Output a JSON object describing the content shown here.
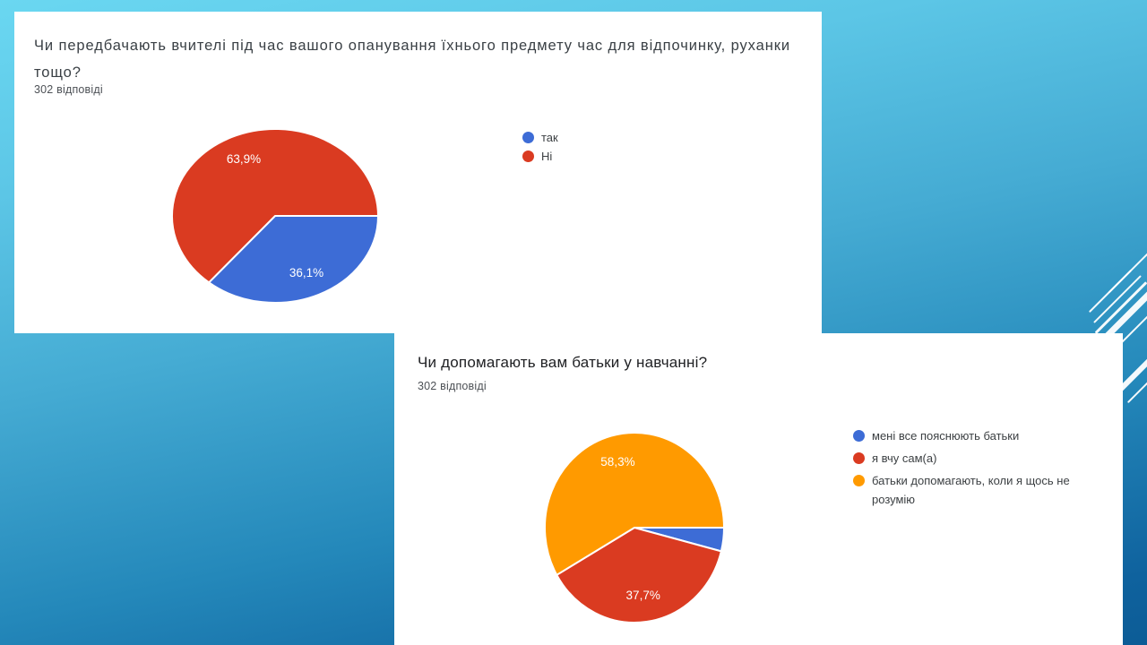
{
  "slide_background": {
    "top_color": "#6ad7f1",
    "bottom_color": "#0c5c96",
    "accent_lines_color": "#ffffff",
    "card_color": "#ffffff"
  },
  "chart_data": [
    {
      "type": "pie",
      "title": "Чи передбачають вчителі під час вашого опанування їхнього предмету час для відпочинку, руханки тощо?",
      "subtitle": "302 відповіді",
      "categories": [
        "так",
        "Ні"
      ],
      "values": [
        36.1,
        63.9
      ],
      "data_labels": [
        "36,1%",
        "63,9%"
      ],
      "colors": [
        "#3d6cd6",
        "#da3b21"
      ],
      "legend_position": "right",
      "start_angle": 0,
      "direction": "clockwise",
      "label_color": "#ffffff"
    },
    {
      "type": "pie",
      "title": "Чи допомагають вам батьки у навчанні?",
      "subtitle": "302 відповіді",
      "categories": [
        "мені все пояснюють батьки",
        "я вчу сам(а)",
        "батьки допомагають, коли я щось не розумію"
      ],
      "values": [
        4.0,
        37.7,
        58.3
      ],
      "data_labels": [
        "",
        "37,7%",
        "58,3%"
      ],
      "colors": [
        "#3d6cd6",
        "#da3b21",
        "#ff9a00"
      ],
      "legend_position": "right",
      "start_angle": 0,
      "direction": "clockwise",
      "label_color": "#ffffff"
    }
  ]
}
